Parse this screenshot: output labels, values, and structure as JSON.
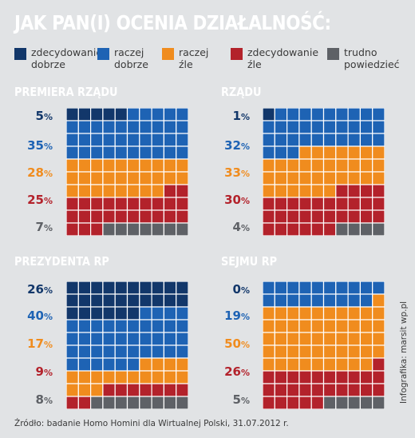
{
  "title": "JAK PAN(I) OCENIA DZIAŁALNOŚĆ:",
  "colors": {
    "background": "#e1e3e5",
    "zdecydowanie_dobrze": "#12376a",
    "raczej_dobrze": "#1e63b4",
    "raczej_zle": "#f08c1e",
    "zdecydowanie_zle": "#b3222b",
    "trudno_powiedziec": "#5e6166"
  },
  "legend": [
    {
      "line1": "zdecydowanie",
      "line2": "dobrze",
      "color": "#12376a"
    },
    {
      "line1": "raczej",
      "line2": "dobrze",
      "color": "#1e63b4"
    },
    {
      "line1": "raczej",
      "line2": "źle",
      "color": "#f08c1e"
    },
    {
      "line1": "zdecydowanie",
      "line2": "źle",
      "color": "#b3222b"
    },
    {
      "line1": "trudno",
      "line2": "powiedzieć",
      "color": "#5e6166"
    }
  ],
  "chart_data": [
    {
      "type": "waffle",
      "title": "PREMIERA RZĄDU",
      "categories": [
        "zdecydowanie dobrze",
        "raczej dobrze",
        "raczej źle",
        "zdecydowanie źle",
        "trudno powiedzieć"
      ],
      "values": [
        5,
        35,
        28,
        25,
        7
      ],
      "unit": "%"
    },
    {
      "type": "waffle",
      "title": "RZĄDU",
      "categories": [
        "zdecydowanie dobrze",
        "raczej dobrze",
        "raczej źle",
        "zdecydowanie źle",
        "trudno powiedzieć"
      ],
      "values": [
        1,
        32,
        33,
        30,
        4
      ],
      "unit": "%"
    },
    {
      "type": "waffle",
      "title": "PREZYDENTA RP",
      "categories": [
        "zdecydowanie dobrze",
        "raczej dobrze",
        "raczej źle",
        "zdecydowanie źle",
        "trudno powiedzieć"
      ],
      "values": [
        26,
        40,
        17,
        9,
        8
      ],
      "unit": "%"
    },
    {
      "type": "waffle",
      "title": "SEJMU RP",
      "categories": [
        "zdecydowanie dobrze",
        "raczej dobrze",
        "raczej źle",
        "zdecydowanie źle",
        "trudno powiedzieć"
      ],
      "values": [
        0,
        19,
        50,
        26,
        5
      ],
      "unit": "%"
    }
  ],
  "source": "Źródło: badanie Homo Homini dla Wirtualnej Polski, 31.07.2012 r.",
  "credit": "Infografika: marsit wp.pl"
}
